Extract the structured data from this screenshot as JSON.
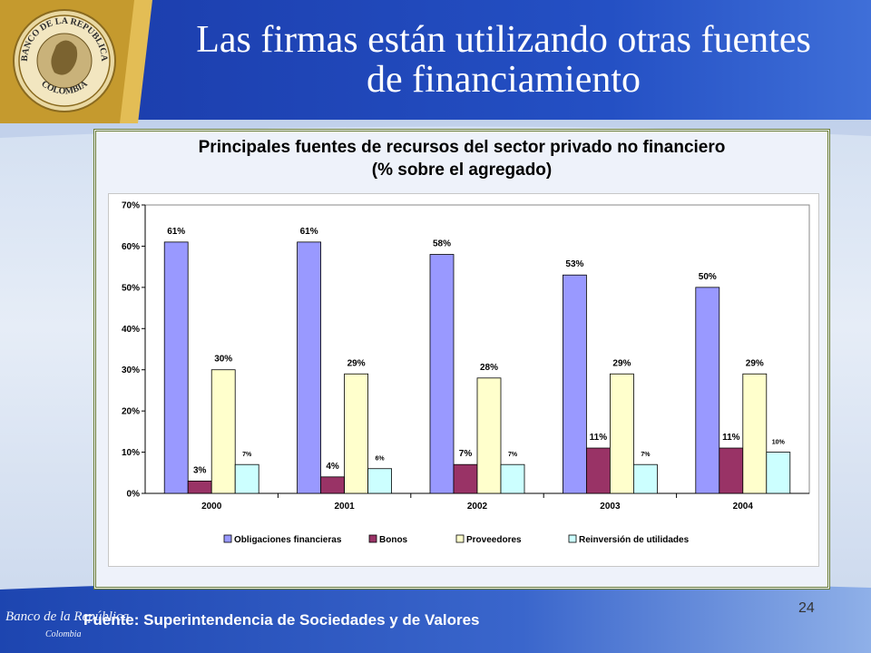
{
  "slide": {
    "title_line1": "Las firmas están utilizando otras fuentes",
    "title_line2": "de financiamiento",
    "source": "Fuente: Superintendencia de Sociedades y  de Valores",
    "page_number": "24"
  },
  "seal": {
    "top_text": "BANCO DE LA REPUBLICA",
    "bottom_text": "COLOMBIA"
  },
  "footer_logo": {
    "text": "Banco de la República",
    "sub": "Colombia"
  },
  "colors": {
    "header_blue": "#1f49b9",
    "gold_band": "#d4a83a",
    "footer_blue": "#2d59c2",
    "frame_border": "#6b7d34"
  },
  "chart_data": {
    "type": "bar",
    "title": "Principales fuentes de recursos del sector privado no financiero",
    "subtitle": "(% sobre el agregado)",
    "categories": [
      "2000",
      "2001",
      "2002",
      "2003",
      "2004"
    ],
    "series": [
      {
        "name": "Obligaciones financieras",
        "color": "#9999ff",
        "values": [
          61,
          61,
          58,
          53,
          50
        ],
        "labels": [
          "61%",
          "61%",
          "58%",
          "53%",
          "50%"
        ]
      },
      {
        "name": "Bonos",
        "color": "#993366",
        "values": [
          3,
          4,
          7,
          11,
          11
        ],
        "labels": [
          "3%",
          "4%",
          "7%",
          "11%",
          "11%"
        ]
      },
      {
        "name": "Proveedores",
        "color": "#ffffcc",
        "values": [
          30,
          29,
          28,
          29,
          29
        ],
        "labels": [
          "30%",
          "29%",
          "28%",
          "29%",
          "29%"
        ]
      },
      {
        "name": "Reinversión de utilidades",
        "color": "#ccffff",
        "values": [
          7,
          6,
          7,
          7,
          10
        ],
        "labels": [
          "7%",
          "6%",
          "7%",
          "7%",
          "10%"
        ]
      }
    ],
    "yticks": [
      "0%",
      "10%",
      "20%",
      "30%",
      "40%",
      "50%",
      "60%",
      "70%"
    ],
    "ylim": [
      0,
      70
    ],
    "grid": false,
    "legend_position": "bottom"
  }
}
